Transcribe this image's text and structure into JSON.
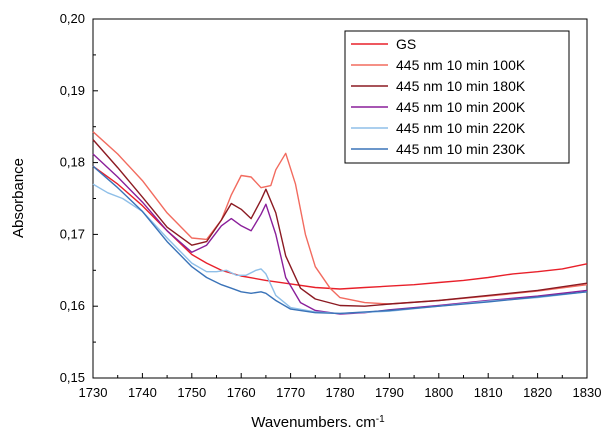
{
  "chart_data": {
    "type": "line",
    "xlabel": "Wavenumbers. cm",
    "xlabel_superscript": "-1",
    "ylabel": "Absorbance",
    "xlim": [
      1730,
      1830
    ],
    "ylim": [
      0.15,
      0.2
    ],
    "x_ticks": [
      1730,
      1740,
      1750,
      1760,
      1770,
      1780,
      1790,
      1800,
      1810,
      1820,
      1830
    ],
    "x_tick_labels": [
      "1730",
      "1740",
      "1750",
      "1760",
      "1770",
      "1780",
      "1790",
      "1800",
      "1810",
      "1820",
      "1830"
    ],
    "y_ticks": [
      0.15,
      0.16,
      0.17,
      0.18,
      0.19,
      0.2
    ],
    "y_tick_labels": [
      "0,15",
      "0,16",
      "0,17",
      "0,18",
      "0,19",
      "0,20"
    ],
    "grid": false,
    "legend_position": "top-right",
    "series": [
      {
        "name": "GS",
        "color": "#e8202a",
        "x": [
          1730,
          1735,
          1740,
          1745,
          1750,
          1753,
          1756,
          1760,
          1765,
          1770,
          1775,
          1780,
          1785,
          1790,
          1795,
          1800,
          1805,
          1810,
          1815,
          1820,
          1825,
          1830
        ],
        "y": [
          0.1795,
          0.177,
          0.174,
          0.1705,
          0.1672,
          0.166,
          0.165,
          0.1642,
          0.1636,
          0.1631,
          0.1626,
          0.1624,
          0.1626,
          0.1628,
          0.163,
          0.1633,
          0.1636,
          0.164,
          0.1645,
          0.1648,
          0.1652,
          0.1659
        ]
      },
      {
        "name": "445 nm 10 min 100K",
        "color": "#f26b5f",
        "x": [
          1730,
          1735,
          1740,
          1745,
          1750,
          1753,
          1756,
          1758,
          1760,
          1762,
          1764,
          1766,
          1767,
          1769,
          1771,
          1773,
          1775,
          1778,
          1780,
          1785,
          1790,
          1800,
          1810,
          1820,
          1830
        ],
        "y": [
          0.1843,
          0.1812,
          0.1775,
          0.173,
          0.1695,
          0.1693,
          0.172,
          0.1755,
          0.1782,
          0.178,
          0.1765,
          0.1768,
          0.179,
          0.1813,
          0.177,
          0.17,
          0.1655,
          0.1625,
          0.1612,
          0.1605,
          0.1603,
          0.1608,
          0.1614,
          0.1621,
          0.163
        ]
      },
      {
        "name": "445 nm 10 min 180K",
        "color": "#8b1a22",
        "x": [
          1730,
          1735,
          1740,
          1745,
          1750,
          1753,
          1756,
          1758,
          1760,
          1762,
          1764,
          1765,
          1767,
          1769,
          1772,
          1775,
          1780,
          1785,
          1790,
          1800,
          1810,
          1820,
          1830
        ],
        "y": [
          0.1832,
          0.1793,
          0.1752,
          0.171,
          0.1685,
          0.169,
          0.172,
          0.1743,
          0.1735,
          0.1722,
          0.1748,
          0.1763,
          0.173,
          0.167,
          0.1625,
          0.161,
          0.1601,
          0.16,
          0.1603,
          0.1608,
          0.1615,
          0.1622,
          0.1632
        ]
      },
      {
        "name": "445 nm 10 min 200K",
        "color": "#8a1f9a",
        "x": [
          1730,
          1735,
          1740,
          1745,
          1750,
          1753,
          1756,
          1758,
          1760,
          1762,
          1764,
          1765,
          1767,
          1769,
          1772,
          1775,
          1780,
          1785,
          1790,
          1800,
          1810,
          1820,
          1830
        ],
        "y": [
          0.1812,
          0.178,
          0.1745,
          0.1705,
          0.1675,
          0.1685,
          0.1712,
          0.1722,
          0.1712,
          0.1705,
          0.1728,
          0.1742,
          0.17,
          0.164,
          0.1605,
          0.1594,
          0.1589,
          0.1591,
          0.1595,
          0.1601,
          0.1608,
          0.1614,
          0.1622
        ]
      },
      {
        "name": "445 nm 10 min 220K",
        "color": "#8fbfe8",
        "x": [
          1730,
          1733,
          1736,
          1740,
          1745,
          1750,
          1753,
          1755,
          1757,
          1759,
          1761,
          1763,
          1764,
          1765,
          1767,
          1770,
          1775,
          1780,
          1790,
          1800,
          1810,
          1820,
          1830
        ],
        "y": [
          0.177,
          0.1758,
          0.175,
          0.1732,
          0.1695,
          0.166,
          0.1648,
          0.1648,
          0.165,
          0.1643,
          0.1643,
          0.165,
          0.1652,
          0.1645,
          0.1615,
          0.1598,
          0.1592,
          0.159,
          0.1593,
          0.16,
          0.1607,
          0.1612,
          0.162
        ]
      },
      {
        "name": "445 nm 10 min 230K",
        "color": "#3a73b8",
        "x": [
          1730,
          1735,
          1740,
          1745,
          1750,
          1753,
          1756,
          1758,
          1760,
          1762,
          1764,
          1765,
          1767,
          1770,
          1775,
          1780,
          1790,
          1800,
          1810,
          1820,
          1830
        ],
        "y": [
          0.1795,
          0.1765,
          0.1732,
          0.169,
          0.1655,
          0.164,
          0.163,
          0.1625,
          0.162,
          0.1618,
          0.162,
          0.1618,
          0.1608,
          0.1596,
          0.1591,
          0.159,
          0.1594,
          0.16,
          0.1606,
          0.1613,
          0.162
        ]
      }
    ]
  }
}
